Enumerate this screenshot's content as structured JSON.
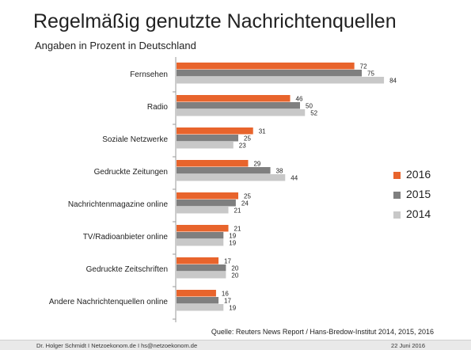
{
  "header": {
    "title": "Regelmäßig genutzte Nachrichtenquellen",
    "subtitle": "Angaben in Prozent in Deutschland"
  },
  "chart_data": {
    "type": "bar",
    "orientation": "horizontal",
    "categories": [
      "Fernsehen",
      "Radio",
      "Soziale Netzwerke",
      "Gedruckte Zeitungen",
      "Nachrichtenmagazine online",
      "TV/Radioanbieter online",
      "Gedruckte Zeitschriften",
      "Andere Nachrichtenquellen online"
    ],
    "series": [
      {
        "name": "2016",
        "color": "#e8642c",
        "values": [
          72,
          46,
          31,
          29,
          25,
          21,
          17,
          16
        ]
      },
      {
        "name": "2015",
        "color": "#7f7f7f",
        "values": [
          75,
          50,
          25,
          38,
          24,
          19,
          20,
          17
        ]
      },
      {
        "name": "2014",
        "color": "#c8c8c8",
        "values": [
          84,
          52,
          23,
          44,
          21,
          19,
          20,
          19
        ]
      }
    ],
    "xlim": [
      0,
      100
    ],
    "grid": false,
    "legend_position": "right"
  },
  "legend": {
    "items": [
      {
        "label": "2016",
        "color": "#e8642c"
      },
      {
        "label": "2015",
        "color": "#7f7f7f"
      },
      {
        "label": "2014",
        "color": "#c8c8c8"
      }
    ]
  },
  "source": "Quelle: Reuters News Report / Hans-Bredow-Institut 2014, 2015, 2016",
  "footer": {
    "left": "Dr. Holger Schmidt  I  Netzoekonom.de  I  hs@netzoekonom.de",
    "right": "22 Juni 2016"
  }
}
